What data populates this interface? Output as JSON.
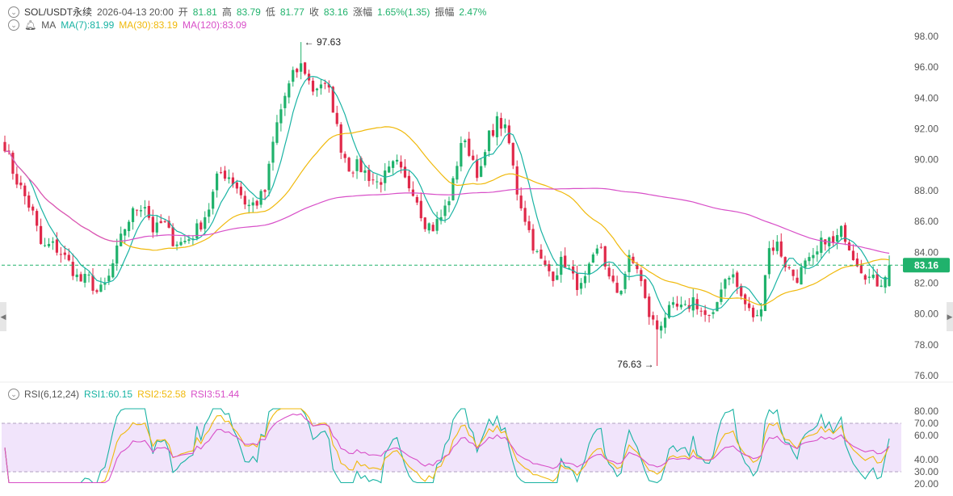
{
  "header": {
    "symbol": "SOL/USDT永续",
    "datetime": "2026-04-13 20:00",
    "open_label": "开",
    "open": "81.81",
    "high_label": "高",
    "high": "83.79",
    "low_label": "低",
    "low": "81.77",
    "close_label": "收",
    "close": "83.16",
    "change_label": "涨幅",
    "change": "1.65%(1.35)",
    "amp_label": "振幅",
    "amp": "2.47%"
  },
  "ma_legend": {
    "name": "MA",
    "ma7": "MA(7):81.99",
    "ma30": "MA(30):83.19",
    "ma120": "MA(120):83.09"
  },
  "rsi_legend": {
    "name": "RSI(6,12,24)",
    "rsi1": "RSI1:60.15",
    "rsi2": "RSI2:52.58",
    "rsi3": "RSI3:51.44"
  },
  "colors": {
    "up": "#20b26c",
    "down": "#e0294a",
    "ma7": "#19b3a3",
    "ma30": "#f0b90b",
    "ma120": "#d84fc8",
    "rsi_band": "#f1e4fb",
    "price_tag": "#20b26c"
  },
  "chart_data": [
    {
      "type": "candlestick",
      "ylim": [
        76,
        99
      ],
      "y_ticks": [
        "98.00",
        "96.00",
        "94.00",
        "92.00",
        "90.00",
        "88.00",
        "86.00",
        "84.00",
        "82.00",
        "80.00",
        "78.00",
        "76.00"
      ],
      "last_price": "83.16",
      "max_marker": "97.63",
      "min_marker": "76.63",
      "close_anchors": [
        91.0,
        89.0,
        87.8,
        86.5,
        84.2,
        84.5,
        84.0,
        83.2,
        82.1,
        82.3,
        81.3,
        82.0,
        84.0,
        85.8,
        86.8,
        87.2,
        85.3,
        86.0,
        84.8,
        84.6,
        85.0,
        85.8,
        87.0,
        89.2,
        89.0,
        88.2,
        87.0,
        87.2,
        88.0,
        91.8,
        94.0,
        95.5,
        96.2,
        94.5,
        95.0,
        94.2,
        91.0,
        89.5,
        89.6,
        89.0,
        88.5,
        89.0,
        89.8,
        88.6,
        88.0,
        86.0,
        85.6,
        86.4,
        88.0,
        91.2,
        90.5,
        88.8,
        91.5,
        92.6,
        91.6,
        88.0,
        86.0,
        84.0,
        83.0,
        82.5,
        83.6,
        82.3,
        81.6,
        83.2,
        84.5,
        82.0,
        81.3,
        83.5,
        83.0,
        80.2,
        79.0,
        80.0,
        80.4,
        80.2,
        81.0,
        80.0,
        79.5,
        82.0,
        82.8,
        81.2,
        80.1,
        79.6,
        84.2,
        84.5,
        83.0,
        82.3,
        83.2,
        83.5,
        85.0,
        84.5,
        85.5,
        84.0,
        83.0,
        82.2,
        82.0,
        83.16
      ]
    },
    {
      "type": "line",
      "name": "RSI(6,12,24)",
      "ylim": [
        20,
        82
      ],
      "y_ticks": [
        "80.00",
        "70.00",
        "60.00",
        "40.00",
        "30.00",
        "20.00"
      ],
      "band": [
        30,
        70
      ]
    }
  ]
}
